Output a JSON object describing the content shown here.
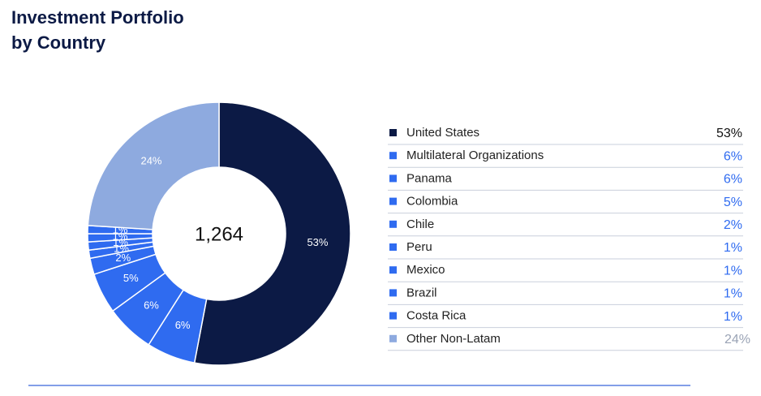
{
  "chart_data": {
    "type": "donut",
    "title_lines": [
      "Investment Portfolio",
      "by Country"
    ],
    "center_label": "1,264",
    "categories": [
      "United States",
      "Multilateral Organizations",
      "Panama",
      "Colombia",
      "Chile",
      "Peru",
      "Mexico",
      "Brazil",
      "Costa Rica",
      "Other Non-Latam"
    ],
    "values": [
      53,
      6,
      6,
      5,
      2,
      1,
      1,
      1,
      1,
      24
    ],
    "value_labels": [
      "53%",
      "6%",
      "6%",
      "5%",
      "2%",
      "1%",
      "1%",
      "1%",
      "1%",
      "24%"
    ],
    "colors": [
      "#0c1a45",
      "#2f6bf0",
      "#2f6bf0",
      "#2f6bf0",
      "#2f6bf0",
      "#2f6bf0",
      "#2f6bf0",
      "#2f6bf0",
      "#2f6bf0",
      "#8eaadf"
    ],
    "legend_value_colors": [
      "#111111",
      "#2f6bf0",
      "#2f6bf0",
      "#2f6bf0",
      "#2f6bf0",
      "#2f6bf0",
      "#2f6bf0",
      "#2f6bf0",
      "#2f6bf0",
      "#9aa3b5"
    ]
  }
}
